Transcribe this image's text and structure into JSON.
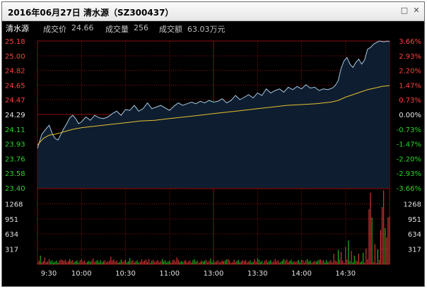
{
  "window": {
    "title": "2016年06月27日  清水源（SZ300437）",
    "buttons": {
      "restore": "□",
      "close": "✕"
    }
  },
  "info": {
    "name": "清水源",
    "price_label": "成交价",
    "price_value": "24.66",
    "volume_label": "成交量",
    "volume_value": "256",
    "amount_label": "成交额",
    "amount_value": "63.03万元"
  },
  "colors": {
    "up": "#ff4040",
    "down": "#26d626",
    "flat": "#e8e8e8",
    "price_line": "#a8c8e0",
    "avg_line": "#e8c030",
    "grid": "#8a1010",
    "fill": "#0e1e30"
  },
  "chart_data": {
    "type": "line",
    "prev_close": 24.29,
    "price_range": [
      23.4,
      25.18
    ],
    "price_ticks": [
      "25.18",
      "25.00",
      "24.82",
      "24.65",
      "24.47",
      "24.29",
      "24.11",
      "23.93",
      "23.76",
      "23.58",
      "23.40"
    ],
    "pct_ticks": [
      "3.66%",
      "2.93%",
      "2.20%",
      "1.47%",
      "0.73%",
      "0.00%",
      "-0.73%",
      "-1.47%",
      "-2.20%",
      "-2.93%",
      "-3.66%"
    ],
    "volume_ticks": [
      "1268",
      "951",
      "634",
      "317"
    ],
    "volume_range": [
      0,
      1585
    ],
    "time_labels": [
      "9:30",
      "10:00",
      "10:30",
      "11:00",
      "13:00",
      "13:30",
      "14:00",
      "14:30"
    ],
    "minutes": 241,
    "price_series": {
      "name": "",
      "points": [
        [
          0,
          23.88
        ],
        [
          3,
          24.05
        ],
        [
          6,
          24.12
        ],
        [
          8,
          24.16
        ],
        [
          10,
          24.06
        ],
        [
          12,
          24.0
        ],
        [
          14,
          23.98
        ],
        [
          16,
          24.05
        ],
        [
          18,
          24.12
        ],
        [
          20,
          24.18
        ],
        [
          22,
          24.25
        ],
        [
          24,
          24.28
        ],
        [
          26,
          24.24
        ],
        [
          28,
          24.18
        ],
        [
          30,
          24.2
        ],
        [
          33,
          24.26
        ],
        [
          36,
          24.22
        ],
        [
          39,
          24.28
        ],
        [
          42,
          24.25
        ],
        [
          45,
          24.24
        ],
        [
          48,
          24.26
        ],
        [
          51,
          24.3
        ],
        [
          54,
          24.33
        ],
        [
          57,
          24.28
        ],
        [
          60,
          24.35
        ],
        [
          63,
          24.34
        ],
        [
          66,
          24.4
        ],
        [
          69,
          24.33
        ],
        [
          72,
          24.36
        ],
        [
          75,
          24.43
        ],
        [
          78,
          24.36
        ],
        [
          81,
          24.38
        ],
        [
          84,
          24.4
        ],
        [
          87,
          24.37
        ],
        [
          90,
          24.34
        ],
        [
          93,
          24.39
        ],
        [
          96,
          24.43
        ],
        [
          99,
          24.4
        ],
        [
          102,
          24.42
        ],
        [
          105,
          24.44
        ],
        [
          108,
          24.42
        ],
        [
          111,
          24.45
        ],
        [
          114,
          24.43
        ],
        [
          117,
          24.46
        ],
        [
          120,
          24.44
        ],
        [
          123,
          24.45
        ],
        [
          126,
          24.48
        ],
        [
          129,
          24.43
        ],
        [
          132,
          24.46
        ],
        [
          135,
          24.52
        ],
        [
          138,
          24.47
        ],
        [
          141,
          24.5
        ],
        [
          144,
          24.53
        ],
        [
          147,
          24.49
        ],
        [
          150,
          24.55
        ],
        [
          153,
          24.52
        ],
        [
          156,
          24.6
        ],
        [
          159,
          24.55
        ],
        [
          162,
          24.58
        ],
        [
          165,
          24.6
        ],
        [
          168,
          24.56
        ],
        [
          171,
          24.62
        ],
        [
          174,
          24.59
        ],
        [
          177,
          24.63
        ],
        [
          180,
          24.6
        ],
        [
          183,
          24.65
        ],
        [
          186,
          24.61
        ],
        [
          189,
          24.62
        ],
        [
          192,
          24.58
        ],
        [
          195,
          24.6
        ],
        [
          198,
          24.59
        ],
        [
          201,
          24.61
        ],
        [
          203,
          24.64
        ],
        [
          205,
          24.7
        ],
        [
          207,
          24.85
        ],
        [
          209,
          24.94
        ],
        [
          211,
          24.98
        ],
        [
          213,
          24.9
        ],
        [
          215,
          24.86
        ],
        [
          217,
          24.92
        ],
        [
          219,
          24.96
        ],
        [
          221,
          24.9
        ],
        [
          223,
          24.95
        ],
        [
          225,
          25.08
        ],
        [
          227,
          25.1
        ],
        [
          229,
          25.14
        ],
        [
          231,
          25.16
        ],
        [
          233,
          25.18
        ],
        [
          236,
          25.17
        ],
        [
          239,
          25.18
        ],
        [
          240,
          25.17
        ]
      ]
    },
    "avg_series": {
      "name": "",
      "points": [
        [
          0,
          23.92
        ],
        [
          4,
          24.0
        ],
        [
          8,
          24.04
        ],
        [
          12,
          24.05
        ],
        [
          16,
          24.07
        ],
        [
          20,
          24.09
        ],
        [
          24,
          24.11
        ],
        [
          30,
          24.13
        ],
        [
          40,
          24.15
        ],
        [
          50,
          24.17
        ],
        [
          60,
          24.19
        ],
        [
          70,
          24.21
        ],
        [
          80,
          24.22
        ],
        [
          90,
          24.24
        ],
        [
          100,
          24.26
        ],
        [
          110,
          24.28
        ],
        [
          120,
          24.3
        ],
        [
          130,
          24.32
        ],
        [
          140,
          24.34
        ],
        [
          150,
          24.36
        ],
        [
          160,
          24.38
        ],
        [
          170,
          24.4
        ],
        [
          180,
          24.41
        ],
        [
          190,
          24.42
        ],
        [
          200,
          24.44
        ],
        [
          205,
          24.46
        ],
        [
          210,
          24.5
        ],
        [
          215,
          24.53
        ],
        [
          220,
          24.56
        ],
        [
          225,
          24.59
        ],
        [
          230,
          24.61
        ],
        [
          235,
          24.63
        ],
        [
          240,
          24.64
        ]
      ]
    },
    "volume_spikes": [
      [
        2,
        180,
        "down"
      ],
      [
        5,
        140,
        "up"
      ],
      [
        17,
        90,
        "up"
      ],
      [
        22,
        110,
        "down"
      ],
      [
        38,
        120,
        "up"
      ],
      [
        50,
        160,
        "up"
      ],
      [
        63,
        130,
        "down"
      ],
      [
        76,
        110,
        "up"
      ],
      [
        95,
        140,
        "up"
      ],
      [
        118,
        120,
        "down"
      ],
      [
        130,
        110,
        "up"
      ],
      [
        150,
        130,
        "up"
      ],
      [
        168,
        110,
        "down"
      ],
      [
        180,
        90,
        "up"
      ],
      [
        193,
        100,
        "up"
      ],
      [
        202,
        220,
        "up"
      ],
      [
        205,
        300,
        "down"
      ],
      [
        207,
        260,
        "up"
      ],
      [
        210,
        360,
        "up"
      ],
      [
        212,
        500,
        "down"
      ],
      [
        214,
        280,
        "up"
      ],
      [
        216,
        180,
        "down"
      ],
      [
        219,
        220,
        "up"
      ],
      [
        222,
        240,
        "down"
      ],
      [
        224,
        330,
        "up"
      ],
      [
        226,
        1150,
        "up"
      ],
      [
        227,
        1500,
        "up"
      ],
      [
        228,
        980,
        "down"
      ],
      [
        230,
        420,
        "up"
      ],
      [
        232,
        310,
        "down"
      ],
      [
        234,
        720,
        "up"
      ],
      [
        235,
        1200,
        "up"
      ],
      [
        236,
        1550,
        "up"
      ],
      [
        237,
        760,
        "down"
      ],
      [
        238,
        560,
        "up"
      ],
      [
        239,
        980,
        "up"
      ],
      [
        240,
        1000,
        "up"
      ]
    ]
  }
}
